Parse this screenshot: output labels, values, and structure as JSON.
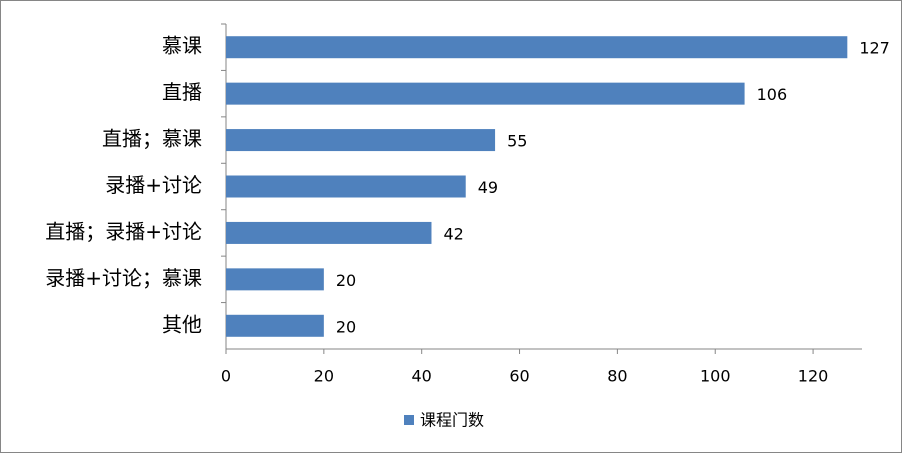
{
  "chart_data": {
    "type": "bar",
    "orientation": "horizontal",
    "categories": [
      "慕课",
      "直播",
      "直播；慕课",
      "录播+讨论",
      "直播；录播+讨论",
      "录播+讨论；慕课",
      "其他"
    ],
    "series": [
      {
        "name": "课程门数",
        "color": "#4f81bd",
        "values": [
          127,
          106,
          55,
          49,
          42,
          20,
          20
        ]
      }
    ],
    "xlim": [
      0,
      130
    ],
    "xticks": [
      0,
      20,
      40,
      60,
      80,
      100,
      120
    ],
    "legend": "bottom"
  }
}
